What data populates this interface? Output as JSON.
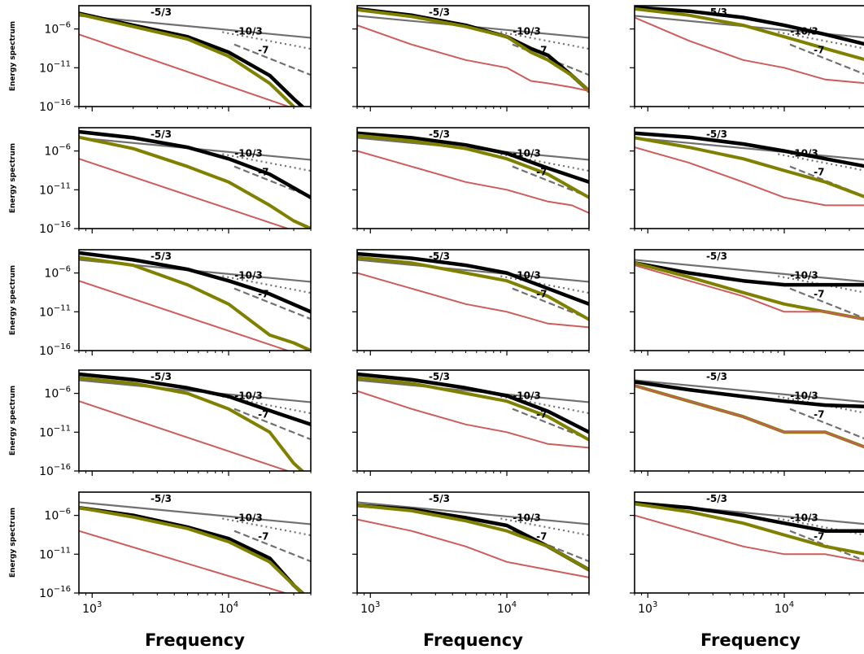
{
  "chart_data": {
    "type": "line",
    "layout": {
      "rows": 5,
      "cols": 3
    },
    "xscale": "log",
    "yscale": "log",
    "xlim": [
      800,
      40000
    ],
    "ylim": [
      1e-16,
      0.001
    ],
    "x_ticks": [
      {
        "value": 1000,
        "base": "10",
        "exp": "3"
      },
      {
        "value": 10000,
        "base": "10",
        "exp": "4"
      }
    ],
    "y_ticks": [
      {
        "value": 1e-06,
        "base": "10",
        "exp": "−6"
      },
      {
        "value": 1e-11,
        "base": "10",
        "exp": "−11"
      },
      {
        "value": 1e-16,
        "base": "10",
        "exp": "−16"
      }
    ],
    "xlabel": "Frequency",
    "ylabel": "Energy spectrum",
    "legend": "none",
    "grid": false,
    "series_colors": {
      "black": "#000000",
      "olive": "#808000",
      "red": "#cd5c5c"
    },
    "reference_lines": [
      {
        "label": "-5/3",
        "slope": -1.6667,
        "style": "solid",
        "color": "#707070",
        "x_start": 800,
        "x_end": 40000,
        "y_at_start": 5e-05
      },
      {
        "label": "-10/3",
        "slope": -3.3333,
        "style": "dotted",
        "color": "#707070",
        "x_start": 9000,
        "x_end": 40000,
        "y_at_start": 4e-07
      },
      {
        "label": "-7",
        "slope": -7,
        "style": "dashed",
        "color": "#707070",
        "x_start": 11000,
        "x_end": 40000,
        "y_at_start": 1e-08
      }
    ],
    "reference_label_positions": [
      {
        "label": "-5/3",
        "x": 3200,
        "y": 0.00015
      },
      {
        "label": "-10/3",
        "x": 14000,
        "y": 5e-07
      },
      {
        "label": "-7",
        "x": 18000,
        "y": 2e-09
      }
    ],
    "panels": [
      {
        "row": 1,
        "col": 1,
        "series": [
          {
            "color_key": "black",
            "x": [
              800,
              2000,
              5000,
              10000,
              20000,
              30000,
              40000
            ],
            "y": [
              0.0001,
              3e-06,
              1e-07,
              1e-09,
              1e-12,
              1e-15,
              1e-17
            ]
          },
          {
            "color_key": "olive",
            "x": [
              800,
              2000,
              5000,
              10000,
              20000,
              30000,
              40000
            ],
            "y": [
              8e-05,
              2e-06,
              5e-08,
              3e-10,
              1e-13,
              1e-16,
              1e-18
            ]
          },
          {
            "color_key": "red",
            "x": [
              800,
              40000
            ],
            "y": [
              2e-07,
              1e-17
            ]
          }
        ]
      },
      {
        "row": 1,
        "col": 2,
        "series": [
          {
            "color_key": "black",
            "x": [
              800,
              2000,
              5000,
              10000,
              15000,
              20000,
              30000,
              40000
            ],
            "y": [
              0.0004,
              6e-05,
              3e-06,
              1e-07,
              3e-09,
              4e-10,
              1e-12,
              1e-14
            ]
          },
          {
            "color_key": "olive",
            "x": [
              800,
              2000,
              5000,
              10000,
              15000,
              20000,
              30000,
              40000
            ],
            "y": [
              0.0003,
              4e-05,
              2e-06,
              1e-07,
              1e-09,
              1e-10,
              1e-12,
              1e-14
            ]
          },
          {
            "color_key": "red",
            "x": [
              800,
              2000,
              5000,
              10000,
              15000,
              20000,
              30000,
              40000
            ],
            "y": [
              3e-06,
              1e-08,
              1e-10,
              1e-11,
              2e-13,
              1e-13,
              3e-14,
              1e-14
            ]
          }
        ]
      },
      {
        "row": 1,
        "col": 3,
        "series": [
          {
            "color_key": "black",
            "x": [
              800,
              2000,
              5000,
              10000,
              20000,
              40000
            ],
            "y": [
              0.0006,
              0.0002,
              3e-05,
              3e-06,
              2e-07,
              1e-08
            ]
          },
          {
            "color_key": "olive",
            "x": [
              800,
              2000,
              5000,
              10000,
              20000,
              40000
            ],
            "y": [
              0.0004,
              6e-05,
              3e-06,
              1e-07,
              3e-09,
              1e-10
            ]
          },
          {
            "color_key": "red",
            "x": [
              800,
              2000,
              5000,
              10000,
              20000,
              40000
            ],
            "y": [
              3e-05,
              3e-08,
              1e-10,
              1e-11,
              3e-13,
              1e-13
            ]
          }
        ]
      },
      {
        "row": 2,
        "col": 1,
        "series": [
          {
            "color_key": "black",
            "x": [
              800,
              2000,
              5000,
              10000,
              20000,
              40000
            ],
            "y": [
              0.0003,
              5e-05,
              3e-06,
              1e-07,
              1e-09,
              1e-12
            ]
          },
          {
            "color_key": "olive",
            "x": [
              800,
              2000,
              5000,
              10000,
              20000,
              30000,
              40000
            ],
            "y": [
              6e-05,
              2e-06,
              1e-08,
              1e-10,
              1e-13,
              1e-15,
              1e-16
            ]
          },
          {
            "color_key": "red",
            "x": [
              800,
              40000
            ],
            "y": [
              1e-07,
              1e-17
            ]
          }
        ]
      },
      {
        "row": 2,
        "col": 2,
        "series": [
          {
            "color_key": "black",
            "x": [
              800,
              2000,
              5000,
              10000,
              20000,
              40000
            ],
            "y": [
              0.0002,
              5e-05,
              6e-06,
              5e-07,
              6e-09,
              1e-10
            ]
          },
          {
            "color_key": "olive",
            "x": [
              800,
              2000,
              5000,
              10000,
              20000,
              40000
            ],
            "y": [
              0.0001,
              2e-05,
              2e-06,
              1e-07,
              1e-09,
              1e-12
            ]
          },
          {
            "color_key": "red",
            "x": [
              800,
              2000,
              5000,
              10000,
              20000,
              30000,
              40000
            ],
            "y": [
              1e-06,
              1e-08,
              1e-10,
              1e-11,
              3e-13,
              1e-13,
              1e-14
            ]
          }
        ]
      },
      {
        "row": 2,
        "col": 3,
        "series": [
          {
            "color_key": "black",
            "x": [
              800,
              2000,
              5000,
              10000,
              20000,
              40000
            ],
            "y": [
              0.0002,
              6e-05,
              8e-06,
              1e-06,
              1e-07,
              1e-08
            ]
          },
          {
            "color_key": "olive",
            "x": [
              800,
              2000,
              5000,
              10000,
              20000,
              40000
            ],
            "y": [
              5e-05,
              3e-06,
              1e-07,
              3e-09,
              1e-10,
              1e-12
            ]
          },
          {
            "color_key": "red",
            "x": [
              800,
              2000,
              5000,
              10000,
              20000,
              40000
            ],
            "y": [
              3e-06,
              3e-08,
              1e-10,
              1e-12,
              1e-13,
              1e-13
            ]
          }
        ]
      },
      {
        "row": 3,
        "col": 1,
        "series": [
          {
            "color_key": "black",
            "x": [
              800,
              2000,
              5000,
              10000,
              20000,
              40000
            ],
            "y": [
              0.0004,
              5e-05,
              3e-06,
              1e-07,
              2e-09,
              1e-11
            ]
          },
          {
            "color_key": "olive",
            "x": [
              800,
              2000,
              5000,
              10000,
              20000,
              30000,
              40000
            ],
            "y": [
              0.0001,
              1e-05,
              3e-08,
              1e-10,
              1e-14,
              1e-15,
              1e-16
            ]
          },
          {
            "color_key": "red",
            "x": [
              800,
              40000
            ],
            "y": [
              1e-07,
              1e-17
            ]
          }
        ]
      },
      {
        "row": 3,
        "col": 2,
        "series": [
          {
            "color_key": "black",
            "x": [
              800,
              2000,
              5000,
              10000,
              20000,
              40000
            ],
            "y": [
              0.0003,
              8e-05,
              1e-05,
              1e-06,
              1e-08,
              1e-10
            ]
          },
          {
            "color_key": "olive",
            "x": [
              800,
              2000,
              5000,
              10000,
              20000,
              40000
            ],
            "y": [
              0.0001,
              2e-05,
              1e-06,
              1e-07,
              1e-09,
              1e-12
            ]
          },
          {
            "color_key": "red",
            "x": [
              800,
              2000,
              5000,
              10000,
              20000,
              40000
            ],
            "y": [
              1e-06,
              1e-08,
              1e-10,
              1e-11,
              3e-13,
              1e-13
            ]
          }
        ]
      },
      {
        "row": 3,
        "col": 3,
        "series": [
          {
            "color_key": "black",
            "x": [
              800,
              2000,
              5000,
              10000,
              20000,
              40000
            ],
            "y": [
              2e-05,
              1e-06,
              1e-07,
              3e-08,
              3e-08,
              3e-08
            ]
          },
          {
            "color_key": "olive",
            "x": [
              800,
              2000,
              5000,
              10000,
              20000,
              40000
            ],
            "y": [
              2e-05,
              3e-07,
              3e-09,
              1e-10,
              1e-11,
              1e-12
            ]
          },
          {
            "color_key": "red",
            "x": [
              800,
              2000,
              5000,
              10000,
              20000,
              40000
            ],
            "y": [
              1e-05,
              1e-07,
              1e-09,
              1e-11,
              1e-11,
              1e-12
            ]
          }
        ]
      },
      {
        "row": 4,
        "col": 1,
        "series": [
          {
            "color_key": "black",
            "x": [
              800,
              2000,
              5000,
              10000,
              20000,
              40000
            ],
            "y": [
              0.0003,
              6e-05,
              5e-06,
              4e-07,
              6e-09,
              1e-10
            ]
          },
          {
            "color_key": "olive",
            "x": [
              800,
              2000,
              5000,
              10000,
              20000,
              30000,
              40000
            ],
            "y": [
              0.0001,
              2e-05,
              1e-06,
              1e-08,
              1e-11,
              1e-15,
              1e-17
            ]
          },
          {
            "color_key": "red",
            "x": [
              800,
              40000
            ],
            "y": [
              1e-07,
              1e-17
            ]
          }
        ]
      },
      {
        "row": 4,
        "col": 2,
        "series": [
          {
            "color_key": "black",
            "x": [
              800,
              2000,
              5000,
              10000,
              20000,
              40000
            ],
            "y": [
              0.0003,
              6e-05,
              5e-06,
              5e-07,
              5e-09,
              1e-11
            ]
          },
          {
            "color_key": "olive",
            "x": [
              800,
              2000,
              5000,
              10000,
              20000,
              40000
            ],
            "y": [
              0.0001,
              2e-05,
              1e-06,
              1e-07,
              1e-09,
              1e-12
            ]
          },
          {
            "color_key": "red",
            "x": [
              800,
              2000,
              5000,
              10000,
              20000,
              40000
            ],
            "y": [
              2e-06,
              1e-08,
              1e-10,
              1e-11,
              3e-13,
              1e-13
            ]
          }
        ]
      },
      {
        "row": 4,
        "col": 3,
        "series": [
          {
            "color_key": "black",
            "x": [
              800,
              2000,
              5000,
              10000,
              20000,
              40000
            ],
            "y": [
              3e-05,
              3e-06,
              4e-07,
              1e-07,
              3e-08,
              2e-08
            ]
          },
          {
            "color_key": "olive",
            "x": [
              800,
              2000,
              5000,
              10000,
              20000,
              40000
            ],
            "y": [
              1e-05,
              1e-07,
              1e-09,
              1e-11,
              1e-11,
              1e-13
            ]
          },
          {
            "color_key": "red",
            "x": [
              800,
              2000,
              5000,
              10000,
              20000,
              40000
            ],
            "y": [
              1e-05,
              1e-07,
              1e-09,
              1e-11,
              1e-11,
              1e-13
            ]
          }
        ]
      },
      {
        "row": 5,
        "col": 1,
        "series": [
          {
            "color_key": "black",
            "x": [
              800,
              2000,
              5000,
              10000,
              20000,
              30000,
              40000
            ],
            "y": [
              1e-05,
              1e-06,
              3e-08,
              1e-09,
              3e-12,
              1e-15,
              1e-17
            ]
          },
          {
            "color_key": "olive",
            "x": [
              800,
              2000,
              5000,
              10000,
              20000,
              30000,
              40000
            ],
            "y": [
              1e-05,
              6e-07,
              2e-08,
              4e-10,
              1e-12,
              1e-15,
              1e-17
            ]
          },
          {
            "color_key": "red",
            "x": [
              800,
              40000
            ],
            "y": [
              1e-08,
              1e-17
            ]
          }
        ]
      },
      {
        "row": 5,
        "col": 2,
        "series": [
          {
            "color_key": "black",
            "x": [
              800,
              2000,
              5000,
              10000,
              20000,
              40000
            ],
            "y": [
              2e-05,
              6e-06,
              5e-07,
              5e-08,
              1e-10,
              1e-13
            ]
          },
          {
            "color_key": "olive",
            "x": [
              800,
              2000,
              5000,
              10000,
              20000,
              40000
            ],
            "y": [
              2e-05,
              4e-06,
              2e-07,
              1e-08,
              1e-10,
              1e-13
            ]
          },
          {
            "color_key": "red",
            "x": [
              800,
              2000,
              5000,
              10000,
              20000,
              40000
            ],
            "y": [
              3e-07,
              1e-08,
              1e-10,
              1e-12,
              1e-13,
              1e-14
            ]
          }
        ]
      },
      {
        "row": 5,
        "col": 3,
        "series": [
          {
            "color_key": "black",
            "x": [
              800,
              2000,
              5000,
              10000,
              20000,
              40000
            ],
            "y": [
              4e-05,
              1e-05,
              1e-06,
              1e-07,
              1e-08,
              1e-08
            ]
          },
          {
            "color_key": "olive",
            "x": [
              800,
              2000,
              5000,
              10000,
              20000,
              40000
            ],
            "y": [
              3e-05,
              3e-06,
              1e-07,
              3e-09,
              1e-10,
              1e-11
            ]
          },
          {
            "color_key": "red",
            "x": [
              800,
              2000,
              5000,
              10000,
              20000,
              40000
            ],
            "y": [
              1e-06,
              1e-08,
              1e-10,
              1e-11,
              1e-11,
              1e-12
            ]
          }
        ]
      }
    ]
  }
}
